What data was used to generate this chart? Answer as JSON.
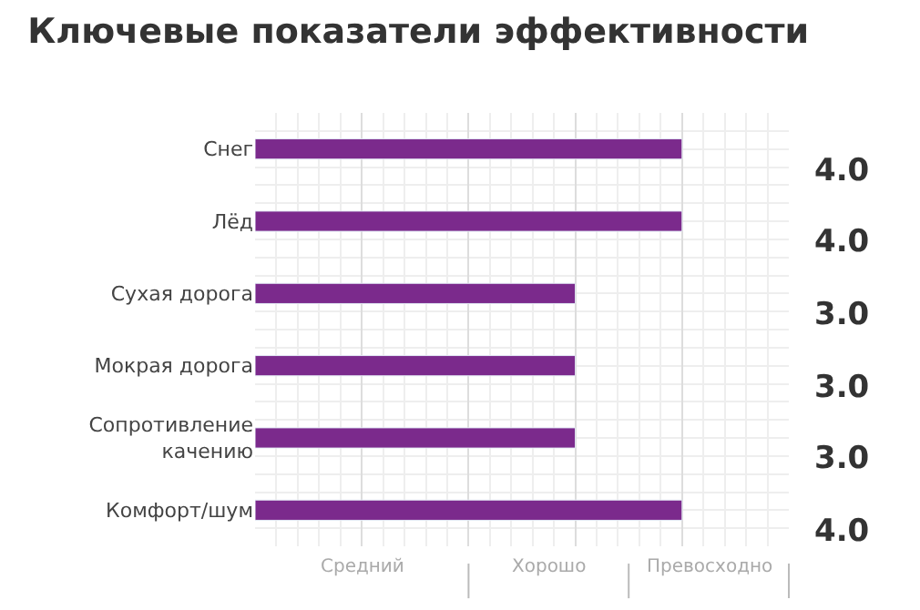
{
  "chart_data": {
    "type": "bar",
    "orientation": "horizontal",
    "title": "Ключевые показатели эффективности",
    "categories": [
      "Снег",
      "Лёд",
      "Сухая дорога",
      "Мокрая дорога",
      "Сопротивление качению",
      "Комфорт/шум"
    ],
    "values": [
      4,
      4,
      3,
      3,
      3,
      4
    ],
    "value_labels": [
      "4.0",
      "4.0",
      "3.0",
      "3.0",
      "3.0",
      "4.0"
    ],
    "color": "#7b2a8c",
    "annotations": [
      "Средний",
      "Хорошо",
      "Превосходно"
    ],
    "grid": true,
    "legend": false
  }
}
